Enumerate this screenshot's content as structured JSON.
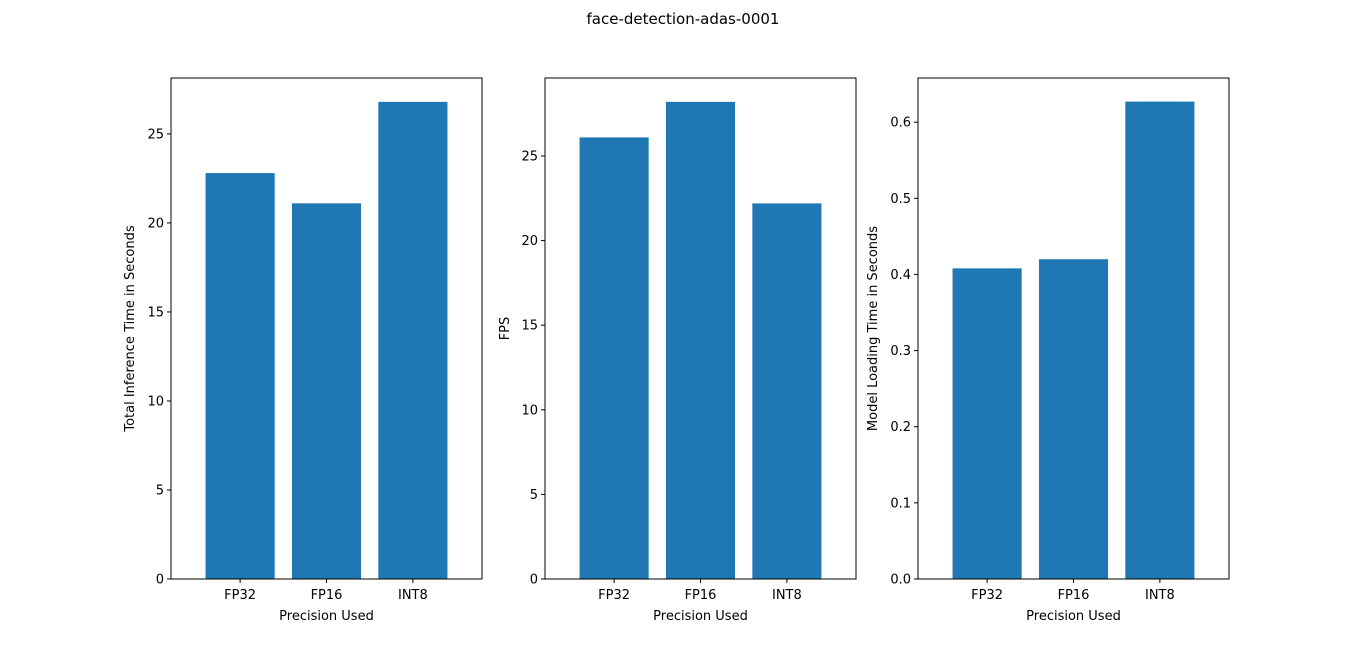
{
  "figure": {
    "suptitle": "face-detection-adas-0001"
  },
  "colors": {
    "bar": "#1f77b4"
  },
  "chart_data": [
    {
      "type": "bar",
      "title": "",
      "categories": [
        "FP32",
        "FP16",
        "INT8"
      ],
      "values": [
        22.8,
        21.1,
        26.8
      ],
      "xlabel": "Precision Used",
      "ylabel": "Total Inference Time in Seconds",
      "ylim": [
        0,
        28.14
      ],
      "yticks": [
        0,
        5,
        10,
        15,
        20,
        25
      ],
      "ytick_labels": [
        "0",
        "5",
        "10",
        "15",
        "20",
        "25"
      ],
      "grid": false
    },
    {
      "type": "bar",
      "title": "",
      "categories": [
        "FP32",
        "FP16",
        "INT8"
      ],
      "values": [
        26.1,
        28.2,
        22.2
      ],
      "xlabel": "Precision Used",
      "ylabel": "FPS",
      "ylim": [
        0,
        29.61
      ],
      "yticks": [
        0,
        5,
        10,
        15,
        20,
        25
      ],
      "ytick_labels": [
        "0",
        "5",
        "10",
        "15",
        "20",
        "25"
      ],
      "grid": false
    },
    {
      "type": "bar",
      "title": "",
      "categories": [
        "FP32",
        "FP16",
        "INT8"
      ],
      "values": [
        0.408,
        0.42,
        0.627
      ],
      "xlabel": "Precision Used",
      "ylabel": "Model Loading Time in Seconds",
      "ylim": [
        0,
        0.658
      ],
      "yticks": [
        0,
        0.1,
        0.2,
        0.3,
        0.4,
        0.5,
        0.6
      ],
      "ytick_labels": [
        "0.0",
        "0.1",
        "0.2",
        "0.3",
        "0.4",
        "0.5",
        "0.6"
      ],
      "grid": false
    }
  ]
}
